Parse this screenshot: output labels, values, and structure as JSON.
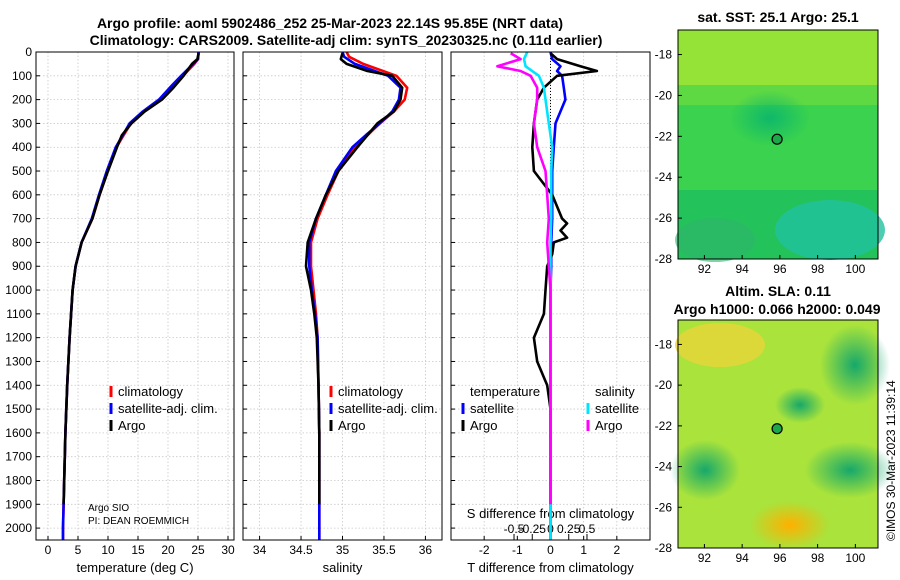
{
  "titles": {
    "line1": "Argo profile: aoml 5902486_252 25-Mar-2023 22.14S 95.85E (NRT data)",
    "line2": "Climatology: CARS2009. Satellite-adj clim: synTS_20230325.nc (0.11d earlier)",
    "sst": "sat. SST: 25.1 Argo: 25.1",
    "sla1": "Altim. SLA: 0.11",
    "sla2": "Argo h1000: 0.066 h2000: 0.049",
    "credit": "©IMOS 30-Mar-2023 11:39:14"
  },
  "footer": {
    "line1": "Argo SIO",
    "line2": "PI: DEAN ROEMMICH"
  },
  "depth_ticks": [
    "0",
    "100",
    "200",
    "300",
    "400",
    "500",
    "600",
    "700",
    "800",
    "900",
    "1000",
    "1100",
    "1200",
    "1300",
    "1400",
    "1500",
    "1600",
    "1700",
    "1800",
    "1900",
    "2000"
  ],
  "legend_left": [
    "climatology",
    "satellite-adj. clim.",
    "Argo"
  ],
  "legend_mid": [
    "climatology",
    "satellite-adj. clim.",
    "Argo"
  ],
  "legend_right": {
    "temp_title": "temperature",
    "temp_items": [
      "satellite",
      "Argo"
    ],
    "sal_title": "salinity",
    "sal_items": [
      "satellite",
      "Argo"
    ]
  },
  "colors": {
    "clim": "#ff0000",
    "sat": "#0000ff",
    "argo": "#000000",
    "sat_s": "#00e5ff",
    "argo_s": "#ff00ff"
  },
  "chart_data": [
    {
      "type": "line",
      "name": "temperature",
      "xlabel": "temperature (deg C)",
      "ylabel": "",
      "xlim": [
        -2,
        31
      ],
      "ylim": [
        2050,
        0
      ],
      "xticks": [
        "0",
        "5",
        "10",
        "15",
        "20",
        "25",
        "30"
      ],
      "xtick_values": [
        0,
        5,
        10,
        15,
        20,
        25,
        30
      ],
      "series": [
        {
          "name": "climatology",
          "color": "#ff0000",
          "depth": [
            0,
            30,
            50,
            100,
            150,
            200,
            250,
            300,
            400,
            500,
            600,
            700,
            800,
            900,
            1000,
            1200,
            1400,
            1600,
            1800,
            2000,
            2050
          ],
          "values": [
            25.1,
            25.0,
            24.4,
            22.5,
            20.8,
            18.8,
            16.0,
            13.8,
            11.4,
            9.9,
            8.6,
            7.4,
            5.6,
            4.6,
            4.1,
            3.6,
            3.2,
            2.9,
            2.7,
            2.5,
            2.5
          ]
        },
        {
          "name": "satellite-adj. clim.",
          "color": "#0000ff",
          "depth": [
            0,
            30,
            50,
            100,
            150,
            200,
            250,
            300,
            400,
            500,
            600,
            700,
            800,
            900,
            1000,
            1200,
            1400,
            1600,
            1800,
            2000,
            2050
          ],
          "values": [
            25.1,
            25.0,
            24.2,
            22.2,
            20.3,
            18.5,
            15.8,
            13.6,
            11.3,
            9.8,
            8.5,
            7.3,
            5.6,
            4.6,
            4.1,
            3.6,
            3.2,
            2.9,
            2.7,
            2.5,
            2.5
          ]
        },
        {
          "name": "Argo",
          "color": "#000000",
          "depth": [
            5,
            30,
            50,
            100,
            150,
            200,
            250,
            300,
            350,
            400,
            500,
            600,
            700,
            800,
            900,
            1000,
            1200,
            1400,
            1600,
            1800,
            1900
          ],
          "values": [
            25.1,
            24.9,
            24.0,
            22.6,
            20.9,
            19.0,
            16.1,
            13.9,
            12.3,
            11.5,
            10.0,
            8.6,
            7.4,
            5.6,
            4.6,
            4.1,
            3.6,
            3.2,
            2.9,
            2.7,
            2.6
          ]
        }
      ]
    },
    {
      "type": "line",
      "name": "salinity",
      "xlabel": "salinity",
      "ylabel": "",
      "xlim": [
        33.8,
        36.2
      ],
      "ylim": [
        2050,
        0
      ],
      "xticks": [
        "34",
        "34.5",
        "35",
        "35.5",
        "36"
      ],
      "xtick_values": [
        34,
        34.5,
        35,
        35.5,
        36
      ],
      "series": [
        {
          "name": "climatology",
          "color": "#ff0000",
          "depth": [
            0,
            20,
            50,
            100,
            150,
            200,
            250,
            300,
            350,
            400,
            500,
            600,
            700,
            800,
            900,
            1000,
            1100,
            1200,
            1400,
            1600,
            1800,
            2000,
            2050
          ],
          "values": [
            35.05,
            35.08,
            35.25,
            35.65,
            35.78,
            35.75,
            35.62,
            35.45,
            35.3,
            35.15,
            34.95,
            34.82,
            34.7,
            34.62,
            34.62,
            34.65,
            34.68,
            34.7,
            34.71,
            34.72,
            34.72,
            34.72,
            34.72
          ]
        },
        {
          "name": "satellite-adj. clim.",
          "color": "#0000ff",
          "depth": [
            0,
            20,
            50,
            100,
            150,
            200,
            250,
            300,
            350,
            400,
            500,
            600,
            700,
            800,
            900,
            1000,
            1100,
            1200,
            1400,
            1600,
            1800,
            2000,
            2050
          ],
          "values": [
            35.0,
            35.02,
            35.15,
            35.55,
            35.7,
            35.68,
            35.6,
            35.45,
            35.28,
            35.12,
            34.92,
            34.8,
            34.68,
            34.6,
            34.6,
            34.63,
            34.67,
            34.7,
            34.71,
            34.72,
            34.72,
            34.72,
            34.72
          ]
        },
        {
          "name": "Argo",
          "color": "#000000",
          "depth": [
            5,
            30,
            50,
            80,
            100,
            150,
            200,
            250,
            300,
            350,
            400,
            500,
            600,
            700,
            800,
            900,
            1000,
            1100,
            1200,
            1400,
            1600,
            1800,
            1900
          ],
          "values": [
            35.0,
            34.98,
            35.05,
            35.3,
            35.6,
            35.72,
            35.7,
            35.62,
            35.42,
            35.3,
            35.18,
            34.95,
            34.8,
            34.68,
            34.58,
            34.56,
            34.62,
            34.66,
            34.69,
            34.71,
            34.72,
            34.72,
            34.72
          ]
        }
      ]
    },
    {
      "type": "line",
      "name": "difference",
      "xlabel": "T difference from climatology",
      "x2label": "S difference from climatology",
      "xlim": [
        -3,
        3
      ],
      "ylim": [
        2050,
        0
      ],
      "xticks": [
        "-2",
        "-1",
        "0",
        "1",
        "2"
      ],
      "xtick_values": [
        -2,
        -1,
        0,
        1,
        2
      ],
      "sticks": [
        "-0.5",
        "-0.25",
        "0",
        "0.25",
        "0.5"
      ],
      "stick_values": [
        -0.5,
        -0.25,
        0,
        0.25,
        0.5
      ],
      "series": [
        {
          "name": "temperature satellite",
          "color": "#0000ff",
          "depth": [
            0,
            30,
            60,
            80,
            100,
            150,
            200,
            300,
            400,
            500,
            600,
            700,
            800,
            900,
            1000,
            1500,
            2000,
            2050
          ],
          "values": [
            0,
            0.05,
            0.3,
            0.2,
            0.35,
            0.4,
            0.45,
            0.15,
            0.1,
            0.05,
            0.05,
            0.05,
            0.02,
            0.02,
            0,
            0,
            0,
            0
          ]
        },
        {
          "name": "temperature Argo",
          "color": "#000000",
          "depth": [
            5,
            30,
            60,
            80,
            100,
            150,
            200,
            300,
            400,
            500,
            600,
            700,
            720,
            750,
            780,
            800,
            850,
            900,
            1000,
            1100,
            1200,
            1300,
            1400,
            1500,
            1700,
            1900
          ],
          "values": [
            0,
            0.2,
            0.9,
            1.4,
            0.2,
            -0.2,
            -0.4,
            -0.5,
            -0.55,
            -0.5,
            0.05,
            0.35,
            0.5,
            0.3,
            0.5,
            0.1,
            0.05,
            -0.1,
            -0.15,
            -0.2,
            -0.5,
            -0.4,
            -0.1,
            0,
            0,
            0
          ]
        },
        {
          "name": "salinity satellite",
          "color": "#00e5ff",
          "depth": [
            0,
            30,
            60,
            100,
            150,
            200,
            300,
            400,
            500,
            600,
            700,
            800,
            900,
            1000,
            1500,
            2000,
            2050
          ],
          "values": [
            -0.7,
            -0.8,
            -0.75,
            -0.35,
            -0.2,
            -0.15,
            -0.05,
            0.05,
            0.02,
            0.02,
            0.02,
            0,
            0,
            0,
            0,
            0,
            0
          ]
        },
        {
          "name": "salinity Argo",
          "color": "#ff00ff",
          "depth": [
            5,
            30,
            60,
            80,
            100,
            150,
            200,
            300,
            400,
            500,
            600,
            700,
            800,
            900,
            1000,
            1500,
            1900
          ],
          "values": [
            -1.2,
            -0.9,
            -1.6,
            -0.9,
            -0.6,
            -0.4,
            -0.4,
            -0.5,
            -0.4,
            -0.15,
            -0.1,
            -0.05,
            -0.1,
            -0.05,
            0,
            0,
            0
          ]
        }
      ]
    },
    {
      "type": "heatmap",
      "name": "sst map",
      "xticks": [
        "92",
        "94",
        "96",
        "98",
        "100"
      ],
      "xtick_values": [
        92,
        94,
        96,
        98,
        100
      ],
      "yticks": [
        "-18",
        "-20",
        "-22",
        "-24",
        "-26",
        "-28"
      ],
      "ytick_values": [
        -18,
        -20,
        -22,
        -24,
        -26,
        -28
      ],
      "xlim": [
        90.6,
        101.2
      ],
      "ylim": [
        -28,
        -16.8
      ],
      "marker": {
        "lon": 95.85,
        "lat": -22.14
      }
    },
    {
      "type": "heatmap",
      "name": "sla map",
      "xticks": [
        "92",
        "94",
        "96",
        "98",
        "100"
      ],
      "xtick_values": [
        92,
        94,
        96,
        98,
        100
      ],
      "yticks": [
        "-18",
        "-20",
        "-22",
        "-24",
        "-26",
        "-28"
      ],
      "ytick_values": [
        -18,
        -20,
        -22,
        -24,
        -26,
        -28
      ],
      "xlim": [
        90.6,
        101.2
      ],
      "ylim": [
        -28,
        -16.8
      ],
      "marker": {
        "lon": 95.85,
        "lat": -22.14
      }
    }
  ]
}
